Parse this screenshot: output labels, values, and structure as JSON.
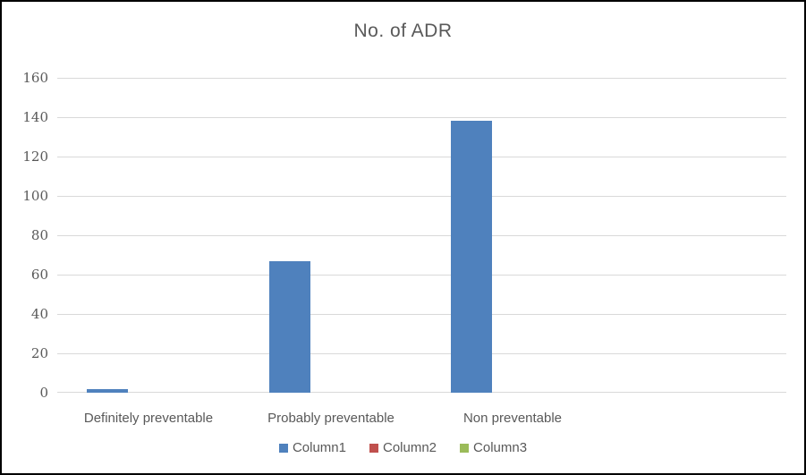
{
  "window": {
    "background": "#FFFFFF",
    "frame_border_color": "#000000"
  },
  "chart_data": {
    "type": "bar",
    "title": "No. of ADR",
    "title_color": "#595959",
    "categories": [
      "Definitely preventable",
      "Probably preventable",
      "Non preventable"
    ],
    "series": [
      {
        "name": "Column1",
        "color": "#4F81BD",
        "values": [
          2,
          67,
          138
        ]
      },
      {
        "name": "Column2",
        "color": "#C0504D",
        "values": [
          0,
          0,
          0
        ]
      },
      {
        "name": "Column3",
        "color": "#9BBB59",
        "values": [
          0,
          0,
          0
        ]
      }
    ],
    "xlabel": "",
    "ylabel": "",
    "ylim": [
      0,
      160
    ],
    "ytick_step": 20,
    "yticks": [
      0,
      20,
      40,
      60,
      80,
      100,
      120,
      140,
      160
    ],
    "grid": "horizontal",
    "gridline_color": "#D9D9D9",
    "axis_line_color": "#D9D9D9",
    "tick_label_color": "#595959",
    "legend_position": "bottom",
    "legend_entries": [
      "Column1",
      "Column2",
      "Column3"
    ]
  }
}
